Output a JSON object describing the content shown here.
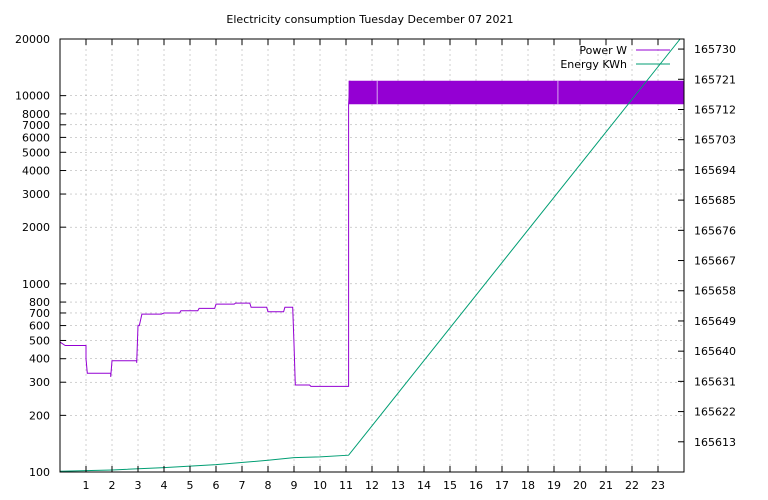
{
  "chart_data": {
    "type": "line",
    "title": "Electricity consumption Tuesday December 07 2021",
    "grid": true,
    "legend_position": "top-right",
    "x": {
      "range": [
        0,
        24
      ],
      "ticks": [
        1,
        2,
        3,
        4,
        5,
        6,
        7,
        8,
        9,
        10,
        11,
        12,
        13,
        14,
        15,
        16,
        17,
        18,
        19,
        20,
        21,
        22,
        23
      ]
    },
    "y_left": {
      "scale": "log",
      "range": [
        100,
        20000
      ],
      "ticks": [
        100,
        200,
        300,
        400,
        500,
        600,
        700,
        800,
        1000,
        2000,
        3000,
        4000,
        5000,
        6000,
        7000,
        8000,
        10000,
        20000
      ]
    },
    "y_right": {
      "scale": "linear",
      "range": [
        165604,
        165733
      ],
      "ticks": [
        165613,
        165622,
        165631,
        165640,
        165649,
        165658,
        165667,
        165676,
        165685,
        165694,
        165703,
        165712,
        165721,
        165730
      ]
    },
    "series": [
      {
        "name": "Power W",
        "axis": "left",
        "color": "#9400d3",
        "style": "step",
        "points": [
          [
            0,
            490
          ],
          [
            0.2,
            470
          ],
          [
            1,
            470
          ],
          [
            1,
            400
          ],
          [
            1.05,
            335
          ],
          [
            1.95,
            335
          ],
          [
            1.95,
            320
          ],
          [
            2,
            390
          ],
          [
            2.95,
            390
          ],
          [
            2.95,
            380
          ],
          [
            3,
            600
          ],
          [
            3.05,
            600
          ],
          [
            3.15,
            690
          ],
          [
            3.9,
            690
          ],
          [
            4,
            700
          ],
          [
            4.6,
            700
          ],
          [
            4.65,
            720
          ],
          [
            5.3,
            720
          ],
          [
            5.35,
            740
          ],
          [
            5.95,
            740
          ],
          [
            6,
            780
          ],
          [
            6.7,
            780
          ],
          [
            6.75,
            790
          ],
          [
            7.3,
            790
          ],
          [
            7.35,
            750
          ],
          [
            7.95,
            750
          ],
          [
            8,
            710
          ],
          [
            8.6,
            710
          ],
          [
            8.65,
            750
          ],
          [
            8.95,
            750
          ],
          [
            9,
            480
          ],
          [
            9.05,
            290
          ],
          [
            9.6,
            290
          ],
          [
            9.65,
            285
          ],
          [
            11.1,
            285
          ],
          [
            11.1,
            9000
          ],
          [
            11.15,
            12000
          ]
        ],
        "band": {
          "x_range": [
            11.1,
            24
          ],
          "low": 9000,
          "high": 12000
        }
      },
      {
        "name": "Energy KWh",
        "axis": "right",
        "color": "#009e73",
        "style": "line",
        "points": [
          [
            0,
            165604.2
          ],
          [
            2,
            165604.6
          ],
          [
            4,
            165605.3
          ],
          [
            6,
            165606.2
          ],
          [
            8,
            165607.5
          ],
          [
            9,
            165608.3
          ],
          [
            10,
            165608.5
          ],
          [
            11.1,
            165609
          ],
          [
            23.85,
            165733
          ]
        ]
      }
    ]
  }
}
